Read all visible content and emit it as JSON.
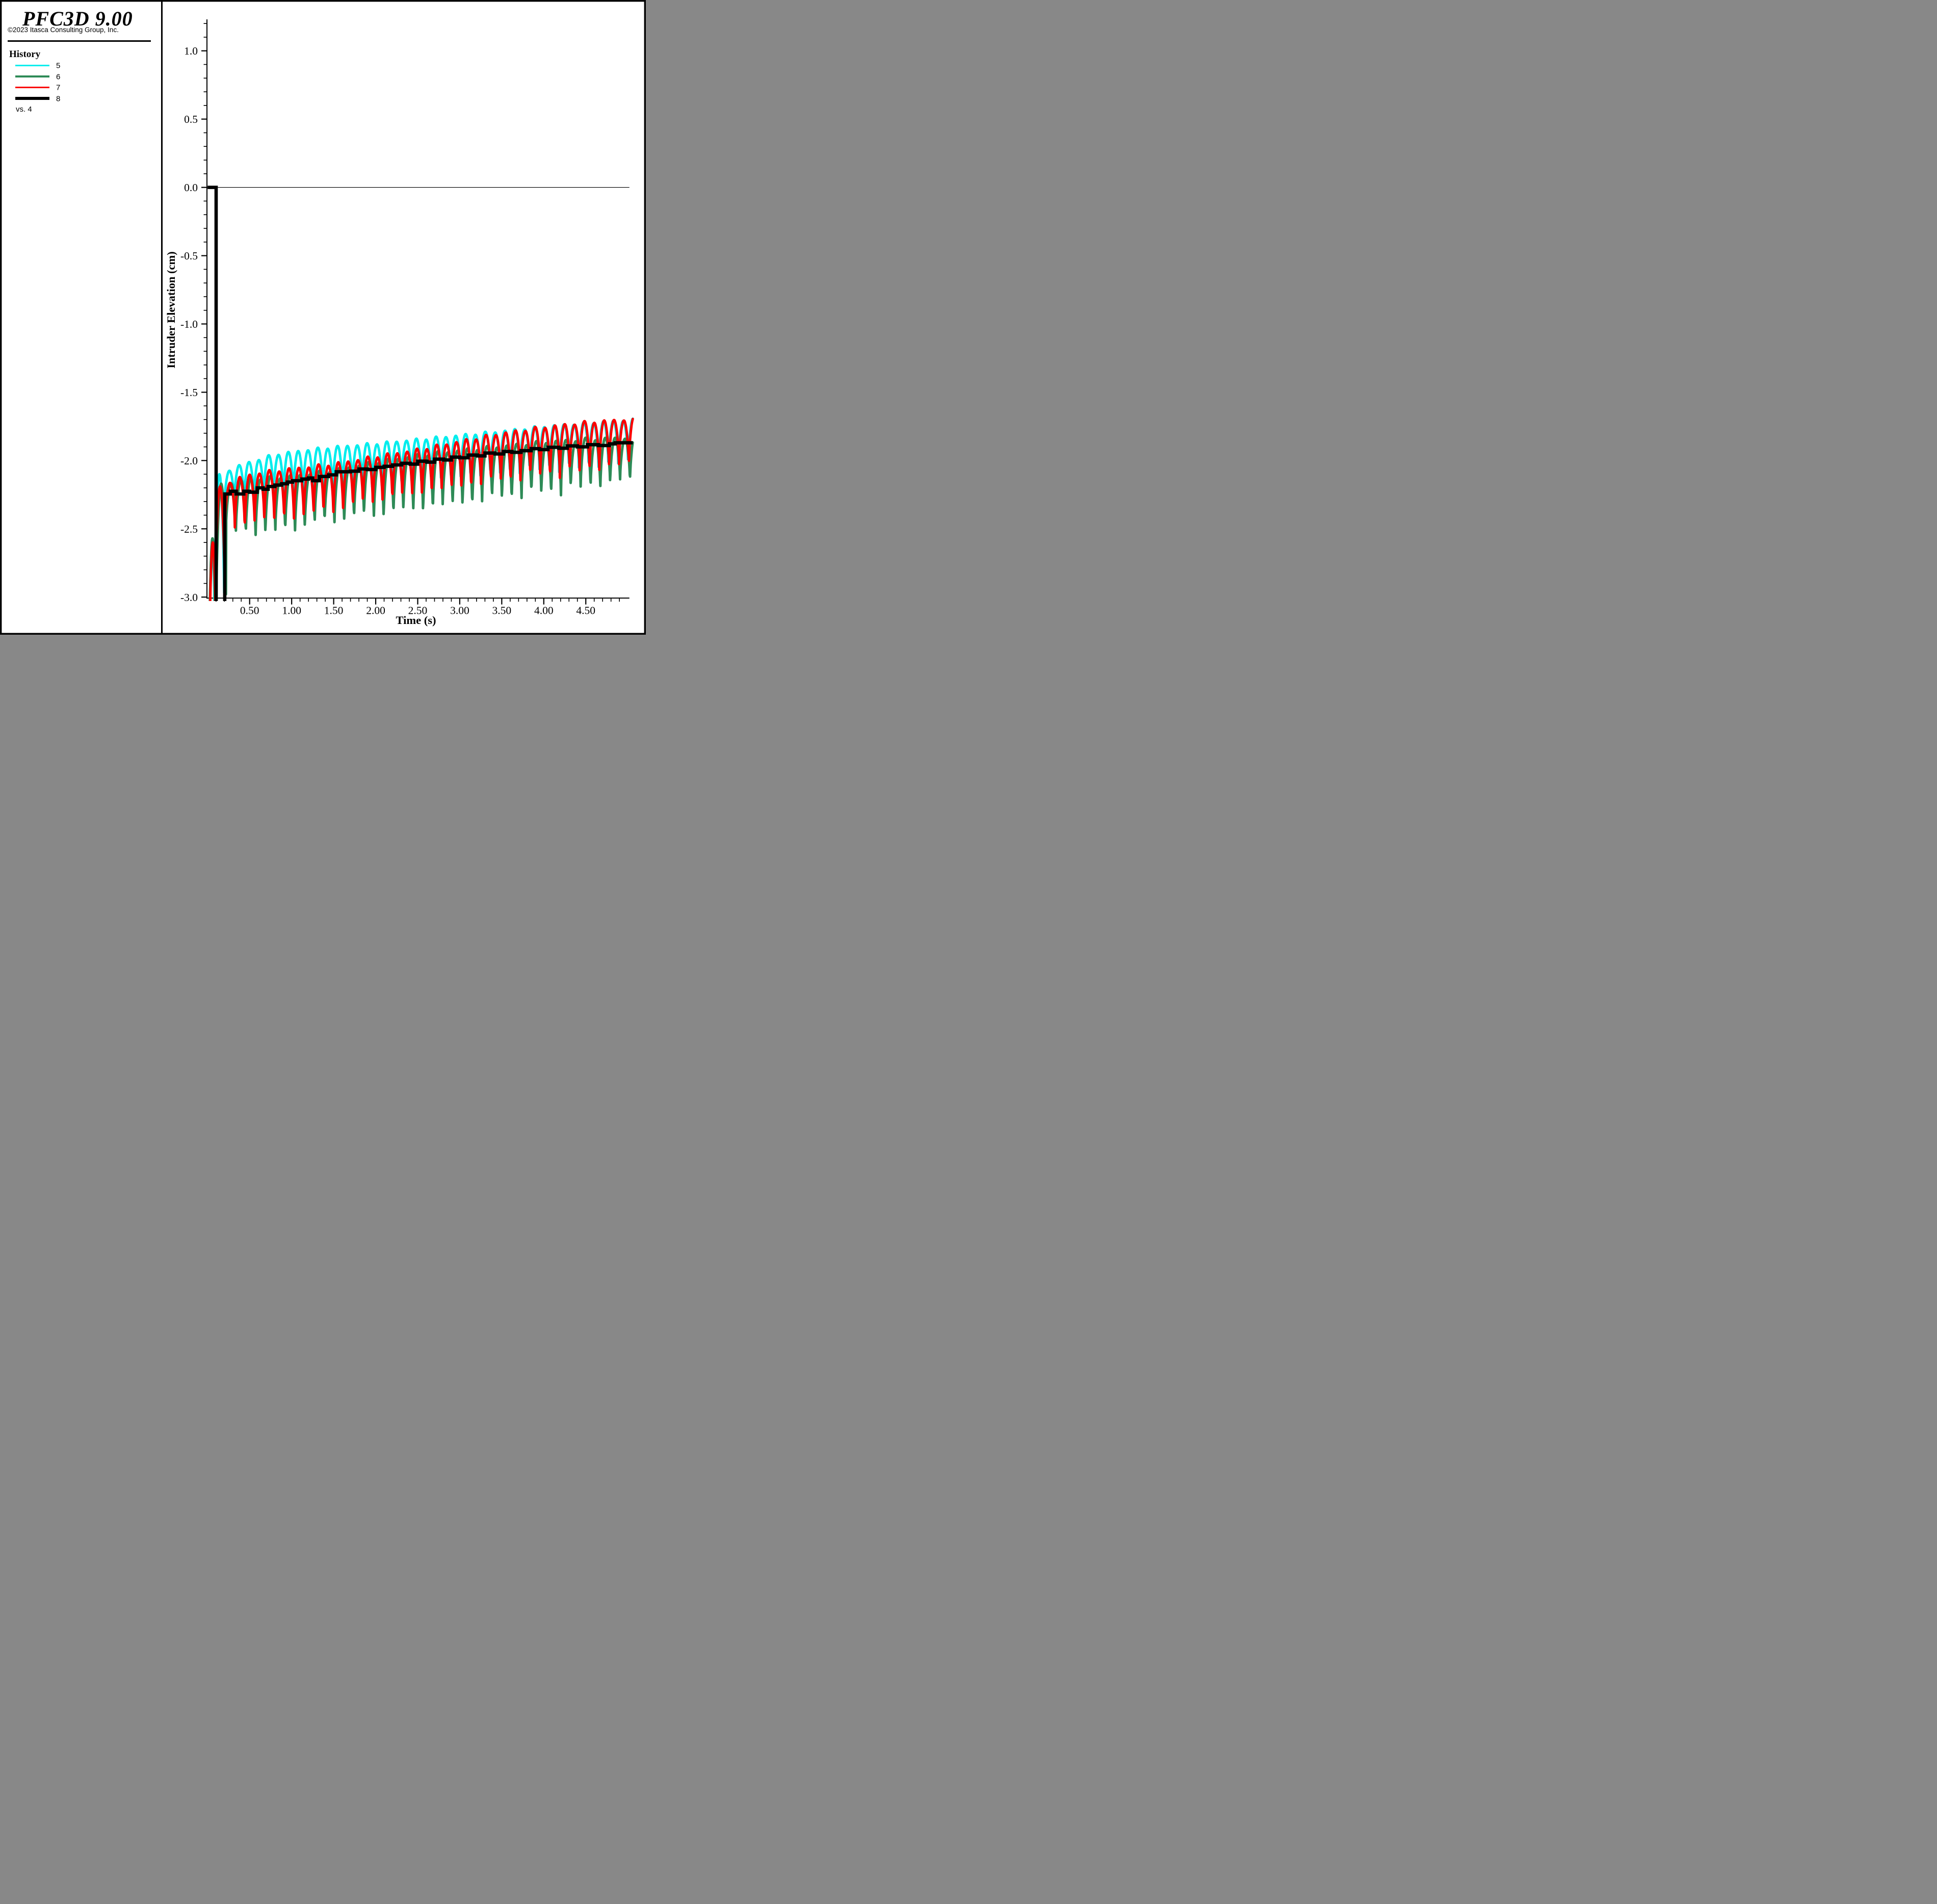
{
  "panel": {
    "title": "PFC3D 9.00",
    "copyright": "©2023 Itasca Consulting Group, Inc.",
    "section_label": "History",
    "legend": [
      {
        "label": "5",
        "color": "#00EDED",
        "thick": false
      },
      {
        "label": "6",
        "color": "#2E8B57",
        "thick": false
      },
      {
        "label": "7",
        "color": "#FA0000",
        "thick": false
      },
      {
        "label": "8",
        "color": "#000000",
        "thick": true
      }
    ],
    "vs_label": "vs. 4"
  },
  "chart_data": {
    "type": "line",
    "title": "",
    "xlabel": "Time (s)",
    "ylabel": "Intruder Elevation (cm)",
    "xlim": [
      0,
      5.03
    ],
    "ylim": [
      -3.0,
      1.25
    ],
    "grid": false,
    "zero_reference_line": 0.0,
    "x_axis_end": 5.02,
    "data_end": 5.06,
    "x_major_ticks": [
      0.5,
      1.0,
      1.5,
      2.0,
      2.5,
      3.0,
      3.5,
      4.0,
      4.5
    ],
    "x_tick_labels": [
      "0.50",
      "1.00",
      "1.50",
      "2.00",
      "2.50",
      "3.00",
      "3.50",
      "4.00",
      "4.50"
    ],
    "x_minor_step": 0.1,
    "x_minor_range": [
      0.1,
      4.9
    ],
    "y_major_ticks": [
      1.0,
      0.5,
      0.0,
      -0.5,
      -1.0,
      -1.5,
      -2.0,
      -2.5,
      -3.0
    ],
    "y_tick_labels": [
      "1.0",
      "0.5",
      "0.0",
      "-0.5",
      "-1.0",
      "-1.5",
      "-2.0",
      "-2.5",
      "-3.0"
    ],
    "y_minor_step": 0.1,
    "y_minor_range": [
      -3.0,
      1.2
    ],
    "period": 0.1172,
    "shape_exp": 0.62,
    "floor_value": -3.12,
    "series": [
      {
        "id": "5",
        "name": "History 5",
        "color": "#00EDED",
        "width": 4.8,
        "phase_peak1": 0.14,
        "end": 5.06,
        "dip_jitter": 0.012,
        "peak_jitter": 0.008,
        "pre_hump": {
          "t_center": 0.054,
          "half_width": 0.03,
          "peak": -2.63
        },
        "peak_env": [
          [
            0.14,
            -2.1
          ],
          [
            0.4,
            -2.03
          ],
          [
            0.8,
            -1.955
          ],
          [
            1.2,
            -1.92
          ],
          [
            1.6,
            -1.895
          ],
          [
            2.0,
            -1.875
          ],
          [
            2.5,
            -1.845
          ],
          [
            3.0,
            -1.815
          ],
          [
            3.5,
            -1.785
          ],
          [
            4.0,
            -1.75
          ],
          [
            4.5,
            -1.725
          ],
          [
            5.06,
            -1.7
          ]
        ],
        "dip_env": [
          [
            0.14,
            -2.36
          ],
          [
            0.5,
            -2.3
          ],
          [
            1.0,
            -2.27
          ],
          [
            1.5,
            -2.24
          ],
          [
            2.0,
            -2.21
          ],
          [
            2.5,
            -2.17
          ],
          [
            3.0,
            -2.14
          ],
          [
            3.5,
            -2.11
          ],
          [
            4.0,
            -2.08
          ],
          [
            4.5,
            -2.06
          ],
          [
            5.06,
            -2.04
          ]
        ]
      },
      {
        "id": "6",
        "name": "History 6",
        "color": "#2E8B57",
        "width": 5.0,
        "phase_peak1": 0.161,
        "end": 5.06,
        "dip_jitter": 0.025,
        "peak_jitter": 0.012,
        "pre_hump": {
          "t_center": 0.058,
          "half_width": 0.033,
          "peak": -2.57
        },
        "peak_env": [
          [
            0.16,
            -2.17
          ],
          [
            0.5,
            -2.135
          ],
          [
            1.0,
            -2.115
          ],
          [
            1.5,
            -2.07
          ],
          [
            2.0,
            -2.01
          ],
          [
            2.5,
            -1.96
          ],
          [
            3.0,
            -1.925
          ],
          [
            3.5,
            -1.895
          ],
          [
            4.0,
            -1.865
          ],
          [
            4.5,
            -1.845
          ],
          [
            5.06,
            -1.83
          ]
        ],
        "dip_env": [
          [
            0.16,
            -2.5
          ],
          [
            0.4,
            -2.54
          ],
          [
            0.72,
            -2.555
          ],
          [
            1.0,
            -2.52
          ],
          [
            1.3,
            -2.48
          ],
          [
            1.6,
            -2.45
          ],
          [
            2.0,
            -2.42
          ],
          [
            2.5,
            -2.38
          ],
          [
            3.0,
            -2.34
          ],
          [
            3.5,
            -2.29
          ],
          [
            4.0,
            -2.25
          ],
          [
            4.5,
            -2.2
          ],
          [
            5.06,
            -2.16
          ]
        ]
      },
      {
        "id": "7",
        "name": "History 7",
        "color": "#FA0000",
        "width": 4.8,
        "phase_peak1": 0.148,
        "end": 5.06,
        "dip_jitter": 0.022,
        "peak_jitter": 0.01,
        "pre_hump": {
          "t_center": 0.062,
          "half_width": 0.034,
          "peak": -2.6
        },
        "peak_env": [
          [
            0.15,
            -2.19
          ],
          [
            0.35,
            -2.13
          ],
          [
            0.6,
            -2.09
          ],
          [
            1.0,
            -2.06
          ],
          [
            1.5,
            -2.025
          ],
          [
            2.0,
            -1.97
          ],
          [
            2.5,
            -1.92
          ],
          [
            3.0,
            -1.86
          ],
          [
            3.5,
            -1.8
          ],
          [
            4.0,
            -1.755
          ],
          [
            4.5,
            -1.72
          ],
          [
            5.06,
            -1.695
          ]
        ],
        "dip_env": [
          [
            0.15,
            -2.47
          ],
          [
            0.4,
            -2.52
          ],
          [
            0.55,
            -2.44
          ],
          [
            0.72,
            -2.46
          ],
          [
            1.0,
            -2.43
          ],
          [
            1.3,
            -2.41
          ],
          [
            1.6,
            -2.37
          ],
          [
            2.0,
            -2.31
          ],
          [
            2.5,
            -2.26
          ],
          [
            3.0,
            -2.21
          ],
          [
            3.5,
            -2.16
          ],
          [
            4.0,
            -2.12
          ],
          [
            4.5,
            -2.08
          ],
          [
            5.06,
            -2.05
          ]
        ]
      },
      {
        "id": "8",
        "name": "History 8",
        "color": "#000000",
        "width": 6.6,
        "type": "steps",
        "initial": [
          [
            0,
            0
          ],
          [
            0.101,
            0
          ],
          [
            0.101,
            -3.12
          ],
          [
            0.204,
            -3.12
          ],
          [
            0.204,
            -2.245
          ]
        ],
        "steps": [
          [
            0.27,
            -2.225
          ],
          [
            0.34,
            -2.245
          ],
          [
            0.43,
            -2.225
          ],
          [
            0.5,
            -2.232
          ],
          [
            0.59,
            -2.2
          ],
          [
            0.66,
            -2.21
          ],
          [
            0.72,
            -2.19
          ],
          [
            0.8,
            -2.18
          ],
          [
            0.88,
            -2.17
          ],
          [
            0.95,
            -2.158
          ],
          [
            1.01,
            -2.148
          ],
          [
            1.12,
            -2.136
          ],
          [
            1.2,
            -2.128
          ],
          [
            1.25,
            -2.148
          ],
          [
            1.33,
            -2.117
          ],
          [
            1.44,
            -2.105
          ],
          [
            1.53,
            -2.082
          ],
          [
            1.7,
            -2.078
          ],
          [
            1.8,
            -2.062
          ],
          [
            1.9,
            -2.066
          ],
          [
            2.0,
            -2.05
          ],
          [
            2.1,
            -2.042
          ],
          [
            2.2,
            -2.032
          ],
          [
            2.31,
            -2.02
          ],
          [
            2.41,
            -2.026
          ],
          [
            2.5,
            -2.005
          ],
          [
            2.61,
            -2.012
          ],
          [
            2.7,
            -1.99
          ],
          [
            2.81,
            -1.996
          ],
          [
            2.9,
            -1.975
          ],
          [
            3.0,
            -1.98
          ],
          [
            3.1,
            -1.96
          ],
          [
            3.21,
            -1.966
          ],
          [
            3.3,
            -1.945
          ],
          [
            3.42,
            -1.952
          ],
          [
            3.52,
            -1.934
          ],
          [
            3.62,
            -1.94
          ],
          [
            3.73,
            -1.928
          ],
          [
            3.85,
            -1.913
          ],
          [
            3.95,
            -1.92
          ],
          [
            4.05,
            -1.903
          ],
          [
            4.18,
            -1.91
          ],
          [
            4.28,
            -1.893
          ],
          [
            4.4,
            -1.9
          ],
          [
            4.52,
            -1.884
          ],
          [
            4.65,
            -1.89
          ],
          [
            4.78,
            -1.878
          ],
          [
            4.85,
            -1.87
          ],
          [
            5.06,
            -1.87
          ]
        ],
        "end": 5.06
      }
    ]
  }
}
